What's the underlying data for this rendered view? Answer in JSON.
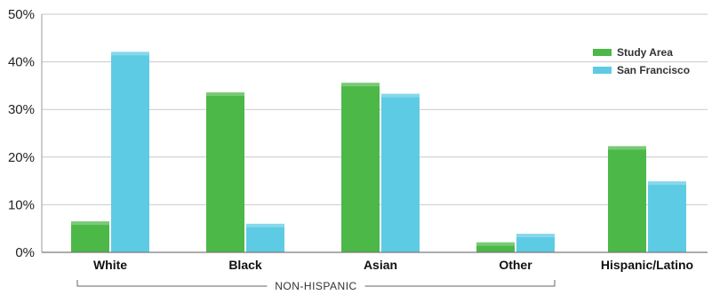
{
  "chart_data": {
    "type": "bar",
    "categories": [
      "White",
      "Black",
      "Asian",
      "Other",
      "Hispanic/Latino"
    ],
    "series": [
      {
        "name": "Study Area",
        "values": [
          6.5,
          33.6,
          35.6,
          2.1,
          22.3
        ],
        "color": "#4cb848"
      },
      {
        "name": "San Francisco",
        "values": [
          42.1,
          6.0,
          33.3,
          3.9,
          14.9
        ],
        "color": "#5ecbe4"
      }
    ],
    "yticks": [
      "0%",
      "10%",
      "20%",
      "30%",
      "40%",
      "50%"
    ],
    "ylim": [
      0,
      50
    ],
    "grid": true,
    "legend_position": "top-right",
    "group_bracket": {
      "label": "NON-HISPANIC",
      "categories": [
        "White",
        "Black",
        "Asian",
        "Other"
      ]
    },
    "title": "",
    "xlabel": "",
    "ylabel": ""
  }
}
